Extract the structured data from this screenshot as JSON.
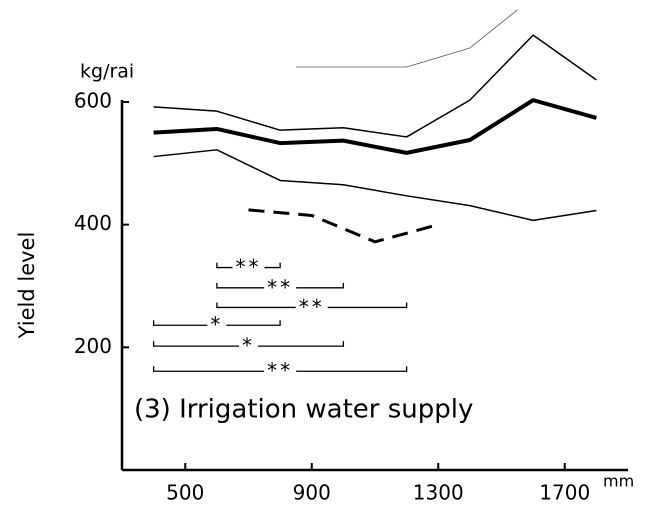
{
  "chart_data": {
    "type": "line",
    "ylabel": "Yield level",
    "yunit": "kg/rai",
    "xunit": "mm",
    "annotation": "(3) Irrigation water supply",
    "xlim": [
      300,
      1900
    ],
    "ylim": [
      0,
      620
    ],
    "xticks": [
      500,
      900,
      1300,
      1700
    ],
    "yticks": [
      200,
      400,
      600
    ],
    "grid": false,
    "series": [
      {
        "color": "#000000",
        "width": 1.5,
        "x": [
          400,
          600,
          800,
          1000,
          1200,
          1400,
          1600,
          1800
        ],
        "values": [
          592,
          585,
          554,
          558,
          543,
          603,
          709,
          636
        ]
      },
      {
        "color": "#000000",
        "width": 4,
        "x": [
          400,
          600,
          800,
          1000,
          1200,
          1400,
          1600,
          1800
        ],
        "values": [
          550,
          556,
          533,
          537,
          517,
          538,
          603,
          574
        ]
      },
      {
        "color": "#000000",
        "width": 1.5,
        "x": [
          400,
          600,
          800,
          1000,
          1200,
          1400,
          1600,
          1800
        ],
        "values": [
          511,
          522,
          472,
          465,
          447,
          431,
          407,
          423
        ]
      },
      {
        "color": "#555555",
        "width": 0.8,
        "x": [
          850,
          1200,
          1400,
          1550
        ],
        "values": [
          657,
          657,
          688,
          750
        ]
      },
      {
        "color": "#000000",
        "width": 3,
        "dash": true,
        "x": [
          700,
          900,
          1100,
          1300
        ],
        "values": [
          424,
          415,
          372,
          400
        ]
      }
    ],
    "brackets": [
      {
        "text": "**",
        "x": [
          600,
          800
        ],
        "y": 330
      },
      {
        "text": "**",
        "x": [
          600,
          1000
        ],
        "y": 297
      },
      {
        "text": "**",
        "x": [
          600,
          1200
        ],
        "y": 265
      },
      {
        "text": "*",
        "x": [
          400,
          800
        ],
        "y": 236
      },
      {
        "text": "*",
        "x": [
          400,
          1000
        ],
        "y": 202
      },
      {
        "text": "**",
        "x": [
          400,
          1200
        ],
        "y": 161
      }
    ]
  }
}
